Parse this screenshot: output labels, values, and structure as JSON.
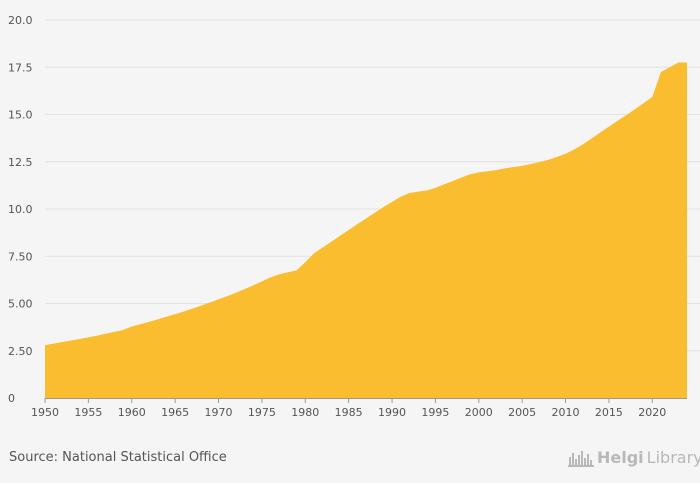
{
  "chart_data": {
    "type": "area",
    "title": "",
    "xlabel": "",
    "ylabel": "",
    "ylim": [
      0,
      20
    ],
    "xlim": [
      1950,
      2024
    ],
    "grid": true,
    "color": "#f9bd2f",
    "y_ticks": [
      "0",
      "2.50",
      "5.00",
      "7.50",
      "10.0",
      "12.5",
      "15.0",
      "17.5",
      "20.0"
    ],
    "y_tick_values": [
      0,
      2.5,
      5,
      7.5,
      10,
      12.5,
      15,
      17.5,
      20
    ],
    "x_ticks": [
      "1950",
      "1955",
      "1960",
      "1965",
      "1970",
      "1975",
      "1980",
      "1985",
      "1990",
      "1995",
      "2000",
      "2005",
      "2010",
      "2015",
      "2020"
    ],
    "series": [
      {
        "name": "",
        "x": [
          1950,
          1951,
          1952,
          1953,
          1954,
          1955,
          1956,
          1957,
          1958,
          1959,
          1960,
          1961,
          1962,
          1963,
          1964,
          1965,
          1966,
          1967,
          1968,
          1969,
          1970,
          1971,
          1972,
          1973,
          1974,
          1975,
          1976,
          1977,
          1978,
          1979,
          1980,
          1981,
          1982,
          1983,
          1984,
          1985,
          1986,
          1987,
          1988,
          1989,
          1990,
          1991,
          1992,
          1993,
          1994,
          1995,
          1996,
          1997,
          1998,
          1999,
          2000,
          2001,
          2002,
          2003,
          2004,
          2005,
          2006,
          2007,
          2008,
          2009,
          2010,
          2011,
          2012,
          2013,
          2014,
          2015,
          2016,
          2017,
          2018,
          2019,
          2020,
          2021,
          2022,
          2023,
          2024
        ],
        "values": [
          2.8,
          2.88,
          2.96,
          3.04,
          3.12,
          3.21,
          3.3,
          3.4,
          3.5,
          3.6,
          3.78,
          3.9,
          4.03,
          4.16,
          4.3,
          4.44,
          4.58,
          4.73,
          4.89,
          5.05,
          5.22,
          5.39,
          5.57,
          5.76,
          5.96,
          6.17,
          6.38,
          6.55,
          6.65,
          6.75,
          7.18,
          7.65,
          7.96,
          8.27,
          8.58,
          8.89,
          9.2,
          9.5,
          9.8,
          10.1,
          10.38,
          10.65,
          10.85,
          10.92,
          10.98,
          11.12,
          11.3,
          11.48,
          11.67,
          11.84,
          11.94,
          12.0,
          12.06,
          12.15,
          12.22,
          12.28,
          12.38,
          12.48,
          12.6,
          12.75,
          12.92,
          13.15,
          13.42,
          13.73,
          14.05,
          14.36,
          14.67,
          14.97,
          15.28,
          15.6,
          15.93,
          17.25,
          17.5,
          17.75,
          17.75
        ]
      }
    ]
  },
  "footer": {
    "source": "Source: National Statistical Office",
    "logo_part1": "Helgi",
    "logo_part2": "Library."
  }
}
